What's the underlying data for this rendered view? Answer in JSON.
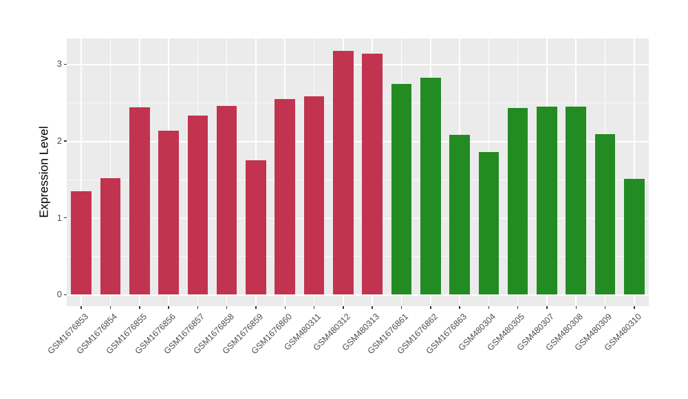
{
  "chart_data": {
    "type": "bar",
    "title": "",
    "xlabel": "",
    "ylabel": "Expression Level",
    "categories": [
      "GSM1676853",
      "GSM1676854",
      "GSM1676855",
      "GSM1676856",
      "GSM1676857",
      "GSM1676858",
      "GSM1676859",
      "GSM1676860",
      "GSM480311",
      "GSM480312",
      "GSM480313",
      "GSM1676861",
      "GSM1676862",
      "GSM1676863",
      "GSM480304",
      "GSM480305",
      "GSM480307",
      "GSM480308",
      "GSM480309",
      "GSM480310"
    ],
    "values": [
      1.35,
      1.52,
      2.44,
      2.13,
      2.33,
      2.46,
      1.75,
      2.55,
      2.58,
      3.17,
      3.14,
      2.74,
      2.82,
      2.08,
      1.86,
      2.43,
      2.45,
      2.45,
      2.09,
      1.51
    ],
    "bar_colors": [
      "#C23350",
      "#C23350",
      "#C23350",
      "#C23350",
      "#C23350",
      "#C23350",
      "#C23350",
      "#C23350",
      "#C23350",
      "#C23350",
      "#C23350",
      "#228B22",
      "#228B22",
      "#228B22",
      "#228B22",
      "#228B22",
      "#228B22",
      "#228B22",
      "#228B22",
      "#228B22"
    ],
    "group_palette": {
      "red": "#C23350",
      "green": "#228B22"
    },
    "y_major_ticks": [
      0,
      1,
      2,
      3
    ],
    "y_minor_gridlines": [
      0.5,
      1.5,
      2.5
    ],
    "ylim": [
      0,
      3.33
    ],
    "grid": "on",
    "legend": "none",
    "panel_background": "#EBEBEB",
    "gridline_color": "#FFFFFF",
    "figure_background": "#FFFFFF"
  }
}
